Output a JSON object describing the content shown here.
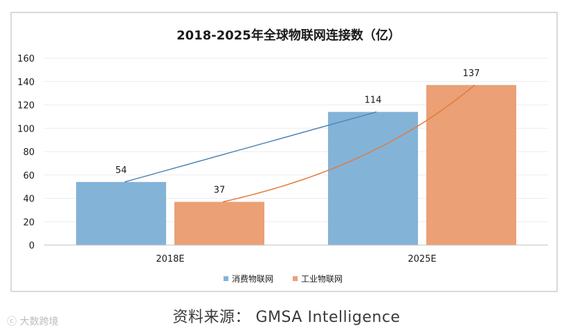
{
  "chart_data": {
    "type": "bar",
    "title": "2018-2025年全球物联网连接数（亿）",
    "categories": [
      "2018E",
      "2025E"
    ],
    "series": [
      {
        "name": "消费物联网",
        "values": [
          54,
          114
        ],
        "color": "#84b3d8"
      },
      {
        "name": "工业物联网",
        "values": [
          37,
          137
        ],
        "color": "#eba075"
      }
    ],
    "trendlines": [
      {
        "series": "消费物联网",
        "kind": "linear",
        "color": "#4f86b8"
      },
      {
        "series": "工业物联网",
        "kind": "exponential",
        "color": "#e07c3c"
      }
    ],
    "ylim": [
      0,
      160
    ],
    "yticks": [
      0,
      20,
      40,
      60,
      80,
      100,
      120,
      140,
      160
    ],
    "xlabel": "",
    "ylabel": "",
    "grid": true,
    "legend": "bottom-center"
  },
  "source": "资料来源： GMSA Intelligence",
  "watermark": "大数跨境"
}
